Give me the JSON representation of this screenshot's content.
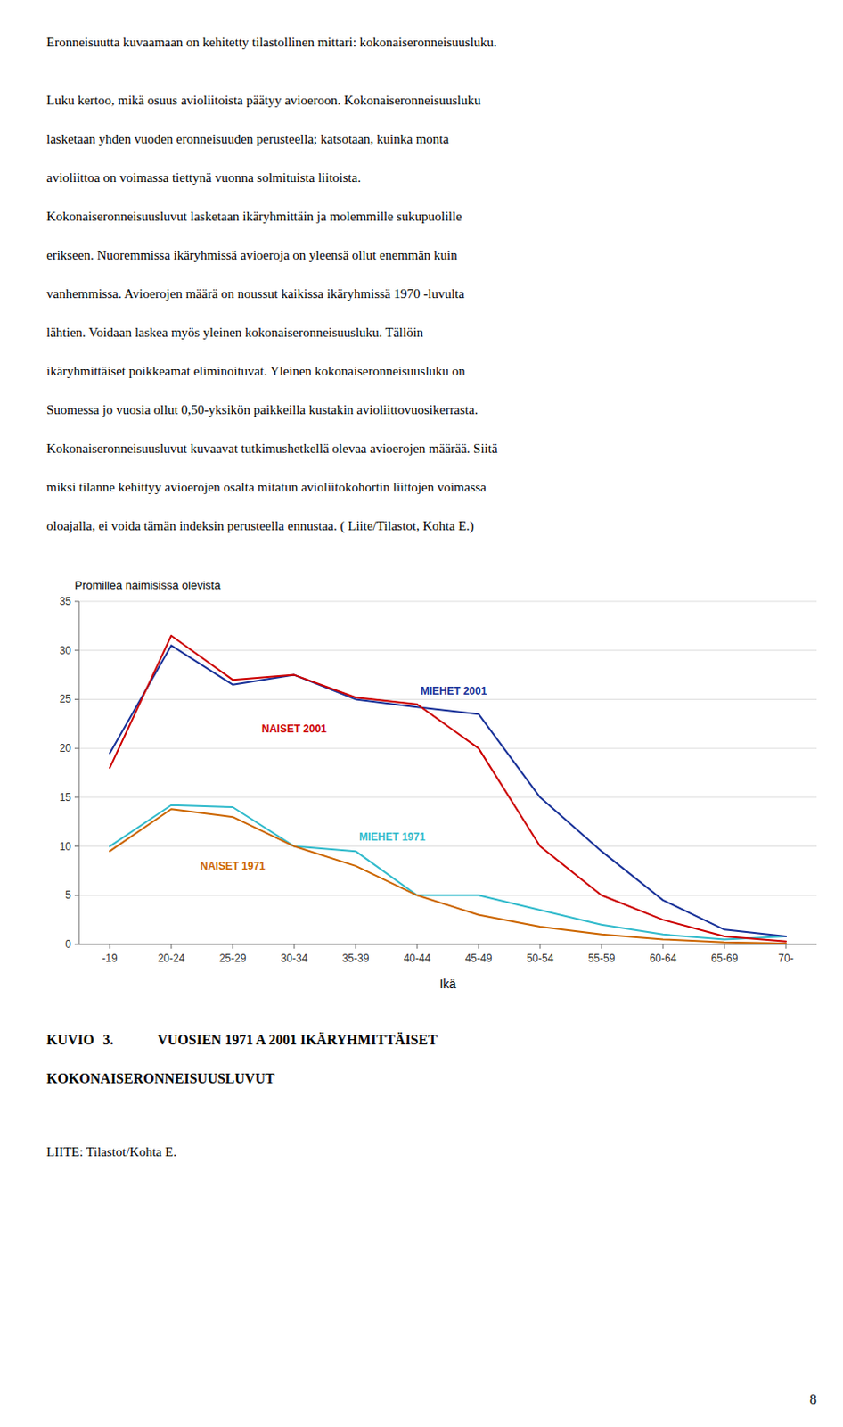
{
  "page": {
    "paragraphs": [
      [
        "Eronneisuutta kuvaamaan on kehitetty tilastollinen mittari: kokonaiseronneisuusluku."
      ],
      [
        "Luku kertoo, mikä osuus avioliitoista päätyy avioeroon. Kokonaiseronneisuusluku",
        "lasketaan yhden vuoden eronneisuuden perusteella; katsotaan, kuinka monta",
        "avioliittoa on voimassa tiettynä vuonna solmituista liitoista.",
        "Kokonaiseronneisuusluvut lasketaan ikäryhmittäin ja molemmille sukupuolille",
        "erikseen. Nuoremmissa ikäryhmissä avioeroja on yleensä ollut enemmän kuin",
        "vanhemmissa. Avioerojen määrä on noussut kaikissa ikäryhmissä 1970 -luvulta",
        "lähtien. Voidaan laskea myös yleinen kokonaiseronneisuusluku. Tällöin",
        "ikäryhmittäiset poikkeamat eliminoituvat. Yleinen kokonaiseronneisuusluku on",
        "Suomessa jo vuosia ollut 0,50-yksikön paikkeilla kustakin avioliittovuosikerrasta.",
        "Kokonaiseronneisuusluvut kuvaavat tutkimushetkellä olevaa avioerojen määrää. Siitä",
        "miksi tilanne kehittyy avioerojen osalta mitatun avioliitokohortin liittojen voimassa",
        "oloajalla, ei voida tämän indeksin perusteella ennustaa. ( Liite/Tilastot, Kohta E.)"
      ]
    ],
    "caption": {
      "label": "KUVIO",
      "number": "3.",
      "lines": [
        "VUOSIEN 1971 A 2001 IKÄRYHMITTÄISET",
        "KOKONAISERONNEISUUSLUVUT"
      ]
    },
    "note": "LIITE: Tilastot/Kohta E.",
    "page_number": "8"
  },
  "chart_data": {
    "type": "line",
    "xlabel": "Ikä",
    "ylabel": "Promillea naimisissa olevista",
    "categories": [
      "-19",
      "20-24",
      "25-29",
      "30-34",
      "35-39",
      "40-44",
      "45-49",
      "50-54",
      "55-59",
      "60-64",
      "65-69",
      "70-"
    ],
    "series": [
      {
        "name": "NAISET 2001",
        "color": "#cc0000",
        "values": [
          18.0,
          31.5,
          27.0,
          27.5,
          25.2,
          24.5,
          20.0,
          10.0,
          5.0,
          2.5,
          0.8,
          0.3
        ]
      },
      {
        "name": "MIEHET 2001",
        "color": "#1a3399",
        "values": [
          19.5,
          30.5,
          26.5,
          27.5,
          25.0,
          24.2,
          23.5,
          15.0,
          9.5,
          4.5,
          1.5,
          0.8
        ]
      },
      {
        "name": "NAISET 1971",
        "color": "#cc6600",
        "values": [
          9.5,
          13.8,
          13.0,
          10.0,
          8.0,
          5.0,
          3.0,
          1.8,
          1.0,
          0.5,
          0.2,
          0.1
        ]
      },
      {
        "name": "MIEHET 1971",
        "color": "#33bbcc",
        "values": [
          10.0,
          14.2,
          14.0,
          10.0,
          9.5,
          5.0,
          5.0,
          3.5,
          2.0,
          1.0,
          0.5,
          0.8
        ]
      }
    ],
    "ylim": [
      0,
      35
    ],
    "yticks": [
      0,
      5,
      10,
      15,
      20,
      25,
      30,
      35
    ],
    "grid": true
  }
}
